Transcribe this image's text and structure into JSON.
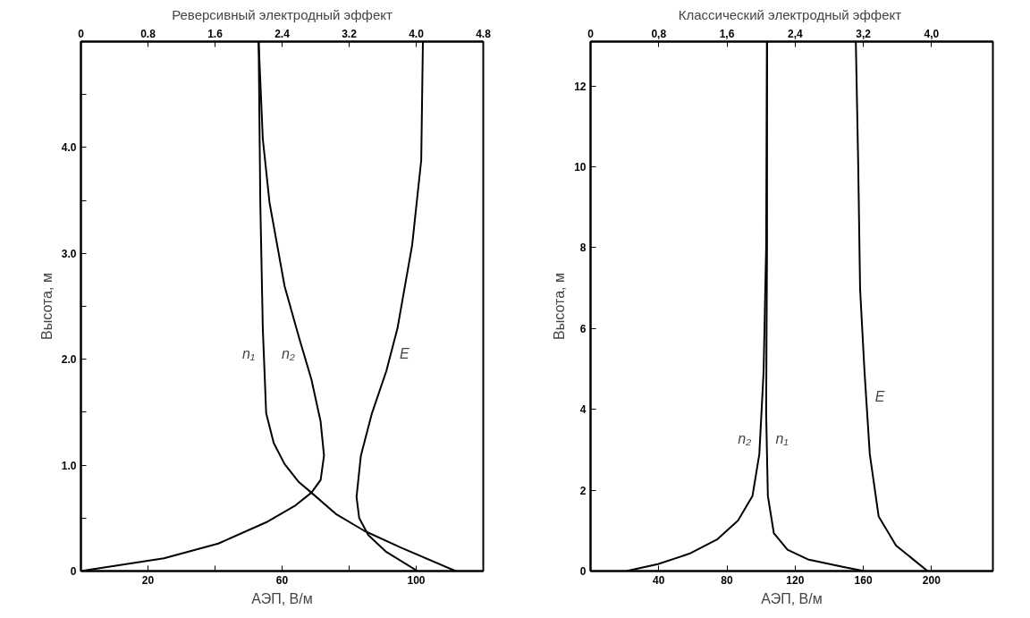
{
  "chart_data": [
    {
      "type": "line",
      "title": "Реверсивный электродный эффект",
      "xlabel": "АЭП, В/м",
      "ylabel": "Высота, м",
      "grid": false,
      "line_style": "solid",
      "marker": "none",
      "xlim": [
        0,
        120
      ],
      "xticks": [
        {
          "value": 20,
          "label": "20"
        },
        {
          "value": 40,
          "label": null
        },
        {
          "value": 60,
          "label": "60"
        },
        {
          "value": 80,
          "label": null
        },
        {
          "value": 100,
          "label": "100"
        }
      ],
      "x2lim": [
        0,
        4.8
      ],
      "x2ticks": [
        0,
        0.8,
        1.6,
        2.4,
        3.2,
        {
          "value": 4.0,
          "label": "4.0"
        },
        4.8
      ],
      "ylim": [
        0,
        5
      ],
      "yticks": [
        0,
        {
          "value": 0.5,
          "label": null
        },
        {
          "value": 1,
          "label": "1.0"
        },
        {
          "value": 1.5,
          "label": null
        },
        {
          "value": 2,
          "label": "2.0"
        },
        {
          "value": 2.5,
          "label": null
        },
        {
          "value": 3,
          "label": "3.0"
        },
        {
          "value": 3.5,
          "label": null
        },
        {
          "value": 4,
          "label": "4.0"
        },
        {
          "value": 4.5,
          "label": null
        }
      ],
      "series": [
        {
          "name": "n₁",
          "color": "#000000",
          "axis": "x2",
          "x": [
            2.12,
            2.14,
            2.17,
            2.21,
            2.3,
            2.43,
            2.6,
            2.75,
            3.04,
            3.38,
            3.82,
            4.47
          ],
          "values": [
            5.0,
            3.48,
            2.29,
            1.49,
            1.21,
            1.01,
            0.84,
            0.74,
            0.54,
            0.38,
            0.22,
            0
          ]
        },
        {
          "name": "n₂",
          "color": "#000000",
          "axis": "x2",
          "x": [
            2.12,
            2.17,
            2.25,
            2.43,
            2.6,
            2.75,
            2.86,
            2.9,
            2.86,
            2.75,
            2.56,
            2.21,
            1.64,
            0.99,
            0
          ],
          "values": [
            5.0,
            4.08,
            3.48,
            2.69,
            2.21,
            1.81,
            1.41,
            1.09,
            0.86,
            0.74,
            0.62,
            0.46,
            0.26,
            0.12,
            0
          ]
        },
        {
          "name": "E",
          "color": "#000000",
          "x": [
            102.0,
            101.5,
            98.8,
            94.4,
            91.1,
            86.8,
            83.5,
            82.2,
            83.0,
            85.7,
            91.1,
            100.4
          ],
          "values": [
            5.0,
            3.88,
            3.08,
            2.29,
            1.89,
            1.49,
            1.09,
            0.7,
            0.5,
            0.34,
            0.18,
            0
          ]
        }
      ]
    },
    {
      "type": "line",
      "title": "Классический  электродный эффект",
      "xlabel": "АЭП, В/м",
      "ylabel": "Высота, м",
      "grid": false,
      "line_style": "solid",
      "marker": "none",
      "xlim": [
        0,
        236
      ],
      "xticks": [
        40,
        80,
        120,
        160,
        200
      ],
      "x2lim": [
        0,
        4.72
      ],
      "x2ticks": [
        0,
        {
          "value": 0.8,
          "label": "0,8"
        },
        {
          "value": 1.6,
          "label": "1,6"
        },
        {
          "value": 2.4,
          "label": "2,4"
        },
        {
          "value": 3.2,
          "label": "3,2"
        },
        {
          "value": 4.0,
          "label": "4,0"
        }
      ],
      "ylim": [
        0,
        13.1
      ],
      "yticks": [
        0,
        2,
        4,
        6,
        8,
        10,
        12
      ],
      "series": [
        {
          "name": "n₁",
          "color": "#000000",
          "axis": "x2",
          "x": [
            2.07,
            2.07,
            2.06,
            2.08,
            2.15,
            2.31,
            2.56,
            2.97,
            3.21
          ],
          "values": [
            13.1,
            8.0,
            3.91,
            1.86,
            0.94,
            0.53,
            0.28,
            0.1,
            0
          ]
        },
        {
          "name": "n₂",
          "color": "#000000",
          "axis": "x2",
          "x": [
            2.07,
            2.06,
            2.03,
            1.98,
            1.9,
            1.73,
            1.49,
            1.16,
            0.79,
            0.42
          ],
          "values": [
            13.1,
            8.0,
            4.93,
            2.89,
            1.86,
            1.25,
            0.79,
            0.43,
            0.17,
            0
          ]
        },
        {
          "name": "E",
          "color": "#000000",
          "x": [
            155.6,
            157.0,
            158.1,
            160.7,
            163.8,
            169.0,
            179.2,
            189.5,
            197.7
          ],
          "values": [
            13.1,
            10.05,
            6.98,
            4.93,
            2.89,
            1.35,
            0.63,
            0.28,
            0
          ]
        }
      ]
    }
  ]
}
